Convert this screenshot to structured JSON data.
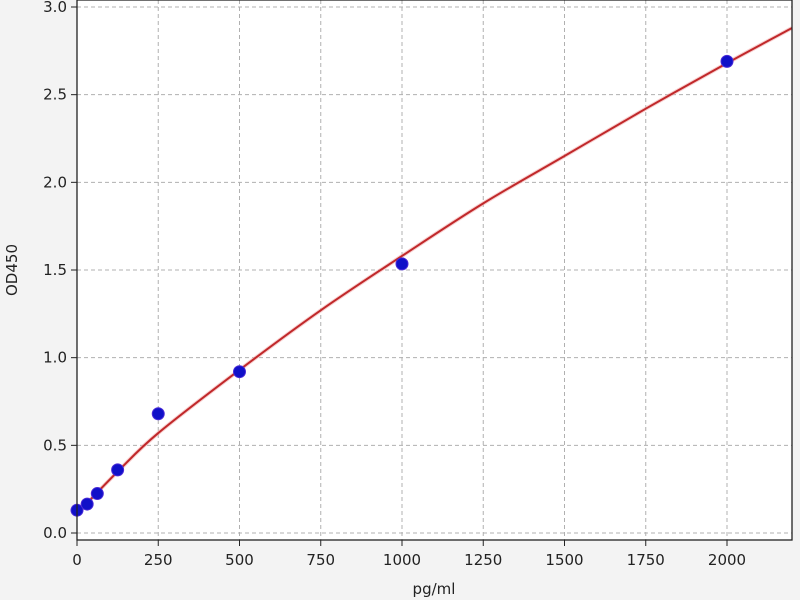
{
  "chart_data": {
    "type": "scatter",
    "title": "",
    "xlabel": "pg/ml",
    "ylabel": "OD450",
    "xlim": [
      0,
      2200
    ],
    "ylim": [
      -0.05,
      3.0
    ],
    "xticks": [
      0,
      250,
      500,
      750,
      1000,
      1250,
      1500,
      1750,
      2000
    ],
    "yticks": [
      0.0,
      0.5,
      1.0,
      1.5,
      2.0,
      2.5,
      3.0
    ],
    "ytick_labels": [
      "0.0",
      "0.5",
      "1.0",
      "1.5",
      "2.0",
      "2.5",
      "3.0"
    ],
    "grid": true,
    "points": {
      "x": [
        0,
        31.25,
        62.5,
        125,
        250,
        500,
        1000,
        2000
      ],
      "y": [
        0.13,
        0.165,
        0.225,
        0.36,
        0.68,
        0.92,
        1.535,
        2.69
      ],
      "color": "#1010c8"
    },
    "fit_curve": {
      "x": [
        0,
        125,
        250,
        500,
        750,
        1000,
        1250,
        1500,
        1750,
        2000,
        2200
      ],
      "y": [
        0.11,
        0.35,
        0.57,
        0.93,
        1.27,
        1.58,
        1.88,
        2.15,
        2.42,
        2.68,
        2.88
      ],
      "color": "#c0282a"
    }
  }
}
